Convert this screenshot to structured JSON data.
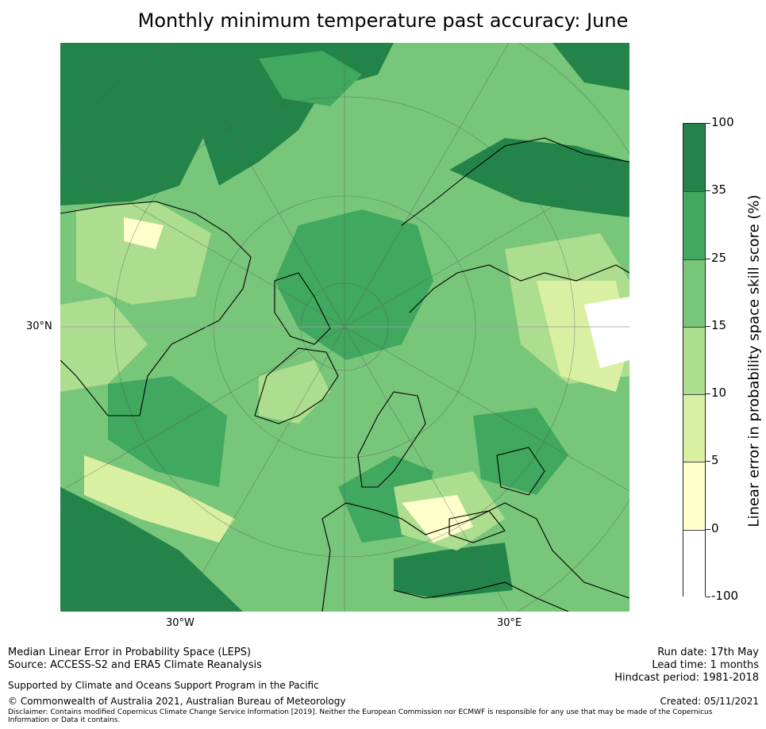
{
  "title": "Monthly minimum temperature past accuracy: June",
  "map": {
    "projection": "north-polar-stereographic",
    "lat_labels": [
      "30°N"
    ],
    "lon_labels": [
      "30°W",
      "30°E"
    ],
    "land_outline_color": "#000000",
    "gridline_color": "#555555"
  },
  "colorbar": {
    "title": "Linear error in probability space skill score (%)",
    "tick_labels": [
      "100",
      "35",
      "25",
      "15",
      "10",
      "5",
      "0",
      "-100"
    ],
    "bins": [
      {
        "from": 35,
        "to": 100,
        "color": "#23844a"
      },
      {
        "from": 25,
        "to": 35,
        "color": "#41a85f"
      },
      {
        "from": 15,
        "to": 25,
        "color": "#78c679"
      },
      {
        "from": 10,
        "to": 15,
        "color": "#addd8e"
      },
      {
        "from": 5,
        "to": 10,
        "color": "#d9f0a3"
      },
      {
        "from": 0,
        "to": 5,
        "color": "#ffffcc"
      },
      {
        "from": -100,
        "to": 0,
        "color": "#ffffff"
      }
    ]
  },
  "footer": {
    "method": "Median Linear Error in Probability Space (LEPS)",
    "source": "Source: ACCESS-S2 and ERA5 Climate Reanalysis",
    "support": "Supported by Climate and Oceans Support Program in the Pacific",
    "copyright": "© Commonwealth of Australia 2021, Australian Bureau of Meteorology",
    "disclaimer": "Disclaimer: Contains modified Copernicus Climate Change Service Information [2019]. Neither the European Commission nor ECMWF is responsible for any use that may be made of the Copernicus Information or Data it contains.",
    "run_date": "Run date: 17th May",
    "lead_time": "Lead time: 1 months",
    "hindcast": "Hindcast period: 1981-2018",
    "created": "Created: 05/11/2021"
  }
}
